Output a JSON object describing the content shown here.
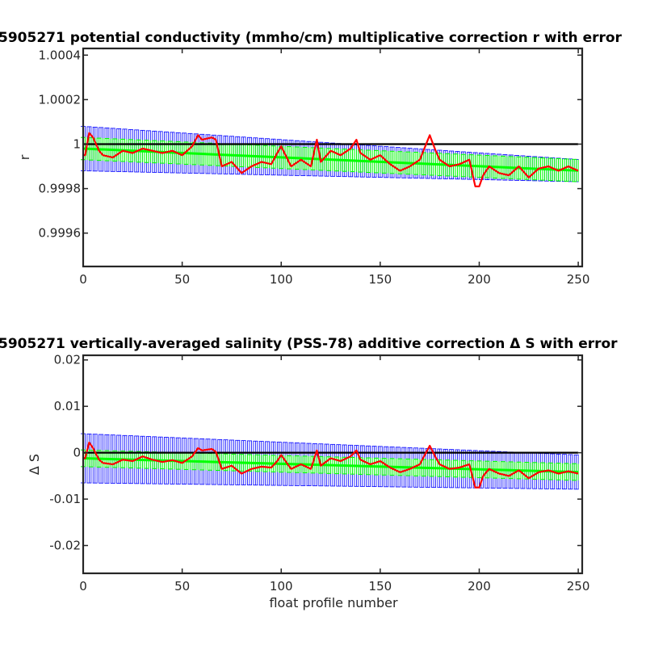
{
  "chart_data": [
    {
      "type": "line",
      "title": "5905271 potential conductivity (mmho/cm) multiplicative correction r with error",
      "xlabel": "",
      "ylabel": "r",
      "xlim": [
        0,
        252
      ],
      "ylim": [
        0.99945,
        1.00043
      ],
      "xticks": [
        0,
        50,
        100,
        150,
        200,
        250
      ],
      "xticklabels": [
        "0",
        "50",
        "100",
        "150",
        "200",
        "250"
      ],
      "yticks": [
        0.9996,
        0.9998,
        1,
        1.0002,
        1.0004
      ],
      "yticklabels": [
        "0.9996",
        "0.9998",
        "1",
        "1.0002",
        "1.0004"
      ],
      "grid": false,
      "colors": {
        "reference": "#000000",
        "profile_fit": "#ff0000",
        "fit_error": "#00ff00",
        "total_error": "#0000ff"
      },
      "reference_line": 1,
      "fit_trend": {
        "x": [
          0,
          252
        ],
        "y": [
          0.99998,
          0.99988
        ]
      },
      "fit_error_halfwidth": 5e-05,
      "total_error_halfwidth_start": 0.0001,
      "total_error_halfwidth_end": 5e-05,
      "profile_fit_nodes": {
        "x": [
          1,
          3,
          5,
          8,
          10,
          15,
          20,
          25,
          30,
          35,
          40,
          45,
          50,
          55,
          58,
          60,
          65,
          67,
          70,
          75,
          80,
          85,
          90,
          95,
          98,
          100,
          105,
          110,
          115,
          118,
          120,
          125,
          130,
          135,
          138,
          140,
          145,
          150,
          155,
          160,
          165,
          170,
          175,
          178,
          180,
          185,
          190,
          195,
          198,
          200,
          202,
          205,
          210,
          215,
          220,
          225,
          230,
          235,
          240,
          245,
          250
        ],
        "y": [
          0.99995,
          1.00005,
          1.00003,
          0.99997,
          0.99995,
          0.99994,
          0.99997,
          0.99996,
          0.99998,
          0.99997,
          0.99996,
          0.99997,
          0.99995,
          0.99999,
          1.00004,
          1.00002,
          1.00003,
          1.00002,
          0.9999,
          0.99992,
          0.99987,
          0.9999,
          0.99992,
          0.99991,
          0.99996,
          0.99999,
          0.9999,
          0.99993,
          0.9999,
          1.00002,
          0.99992,
          0.99997,
          0.99995,
          0.99998,
          1.00002,
          0.99996,
          0.99993,
          0.99995,
          0.99991,
          0.99988,
          0.9999,
          0.99993,
          1.00004,
          0.99997,
          0.99993,
          0.9999,
          0.99991,
          0.99993,
          0.99981,
          0.99981,
          0.99986,
          0.9999,
          0.99987,
          0.99986,
          0.9999,
          0.99985,
          0.99989,
          0.9999,
          0.99988,
          0.9999,
          0.99988
        ]
      }
    },
    {
      "type": "line",
      "title": "5905271 vertically-averaged salinity (PSS-78) additive correction Δ S with error",
      "xlabel": "float profile number",
      "ylabel": "Δ S",
      "xlim": [
        0,
        252
      ],
      "ylim": [
        -0.026,
        0.021
      ],
      "xticks": [
        0,
        50,
        100,
        150,
        200,
        250
      ],
      "xticklabels": [
        "0",
        "50",
        "100",
        "150",
        "200",
        "250"
      ],
      "yticks": [
        -0.02,
        -0.01,
        0,
        0.01,
        0.02
      ],
      "yticklabels": [
        "-0.02",
        "-0.01",
        "0",
        "0.01",
        "0.02"
      ],
      "grid": false,
      "colors": {
        "reference": "#000000",
        "profile_fit": "#ff0000",
        "fit_error": "#00ff00",
        "total_error": "#0000ff"
      },
      "reference_line": 0,
      "fit_trend": {
        "x": [
          0,
          252
        ],
        "y": [
          -0.0012,
          -0.0042
        ]
      },
      "fit_error_halfwidth": 0.0018,
      "total_error_halfwidth_start": 0.0053,
      "total_error_halfwidth_end": 0.0037,
      "profile_fit_nodes": {
        "x": [
          1,
          3,
          5,
          8,
          10,
          15,
          20,
          25,
          30,
          35,
          40,
          45,
          50,
          55,
          58,
          60,
          65,
          67,
          70,
          75,
          80,
          85,
          90,
          95,
          98,
          100,
          105,
          110,
          115,
          118,
          120,
          125,
          130,
          135,
          138,
          140,
          145,
          150,
          155,
          160,
          165,
          170,
          175,
          178,
          180,
          185,
          190,
          195,
          198,
          200,
          202,
          205,
          210,
          215,
          220,
          225,
          230,
          235,
          240,
          245,
          250
        ],
        "y": [
          -0.0012,
          0.0022,
          0.001,
          -0.0015,
          -0.0022,
          -0.0025,
          -0.0015,
          -0.0018,
          -0.0008,
          -0.0015,
          -0.002,
          -0.0016,
          -0.0022,
          -0.0008,
          0.001,
          0.0005,
          0.0008,
          0.0002,
          -0.0035,
          -0.0028,
          -0.0045,
          -0.0035,
          -0.003,
          -0.0032,
          -0.0018,
          -0.0005,
          -0.0035,
          -0.0025,
          -0.0035,
          0.0005,
          -0.0028,
          -0.0012,
          -0.0018,
          -0.0008,
          0.0005,
          -0.0015,
          -0.0025,
          -0.0018,
          -0.0032,
          -0.0042,
          -0.0035,
          -0.0025,
          0.0015,
          -0.001,
          -0.0025,
          -0.0035,
          -0.0032,
          -0.0025,
          -0.0075,
          -0.0075,
          -0.005,
          -0.0035,
          -0.0045,
          -0.005,
          -0.0038,
          -0.0055,
          -0.0042,
          -0.0038,
          -0.0045,
          -0.004,
          -0.0045
        ]
      }
    }
  ]
}
